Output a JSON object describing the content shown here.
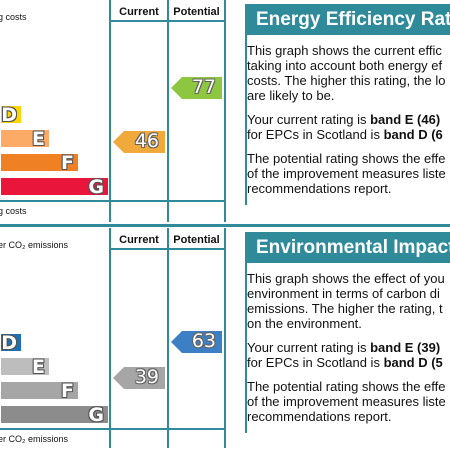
{
  "energy": {
    "top_label": "g costs",
    "bottom_label": "g costs",
    "col_current": "Current",
    "col_potential": "Potential",
    "bands": [
      {
        "letter": "D",
        "color": "#ffd500"
      },
      {
        "letter": "E",
        "color": "#fcaa65"
      },
      {
        "letter": "F",
        "color": "#ef8023"
      },
      {
        "letter": "G",
        "color": "#e9153b"
      }
    ],
    "current": {
      "value": "46",
      "color": "#f0a93a"
    },
    "potential": {
      "value": "77",
      "color": "#8dc63f"
    },
    "panel": {
      "title": "Energy Efficiency Rati",
      "p1": [
        "This graph shows the current effic",
        "taking into account both energy ef",
        "costs. The higher this rating, the lo",
        "are likely to be."
      ],
      "p2a": "Your current rating is ",
      "p2b": "band E (46)",
      "p2c": "for EPCs in Scotland is ",
      "p2d": "band D (6",
      "p3": [
        "The potential rating shows the effe",
        "of the improvement measures liste",
        "recommendations report."
      ]
    }
  },
  "environment": {
    "top_label": "er CO₂ emissions",
    "bottom_label": "er CO₂ emissions",
    "col_current": "Current",
    "col_potential": "Potential",
    "bands": [
      {
        "letter": "D",
        "color": "#1f6fb5"
      },
      {
        "letter": "E",
        "color": "#bdbdbd"
      },
      {
        "letter": "F",
        "color": "#a6a6a6"
      },
      {
        "letter": "G",
        "color": "#8c8c8c"
      }
    ],
    "current": {
      "value": "39",
      "color": "#a6a6a6"
    },
    "potential": {
      "value": "63",
      "color": "#3d7fc4"
    },
    "panel": {
      "title": "Environmental Impact",
      "p1": [
        "This graph shows the effect of you",
        "environment in terms of carbon di",
        "emissions. The higher the rating, t",
        "on the environment."
      ],
      "p2a": "Your current rating is ",
      "p2b": "band E (39)",
      "p2c": "for EPCs in Scotland is ",
      "p2d": "band D (5",
      "p3": [
        "The potential rating shows the effe",
        "of the improvement measures liste",
        "recommendations report."
      ]
    }
  }
}
